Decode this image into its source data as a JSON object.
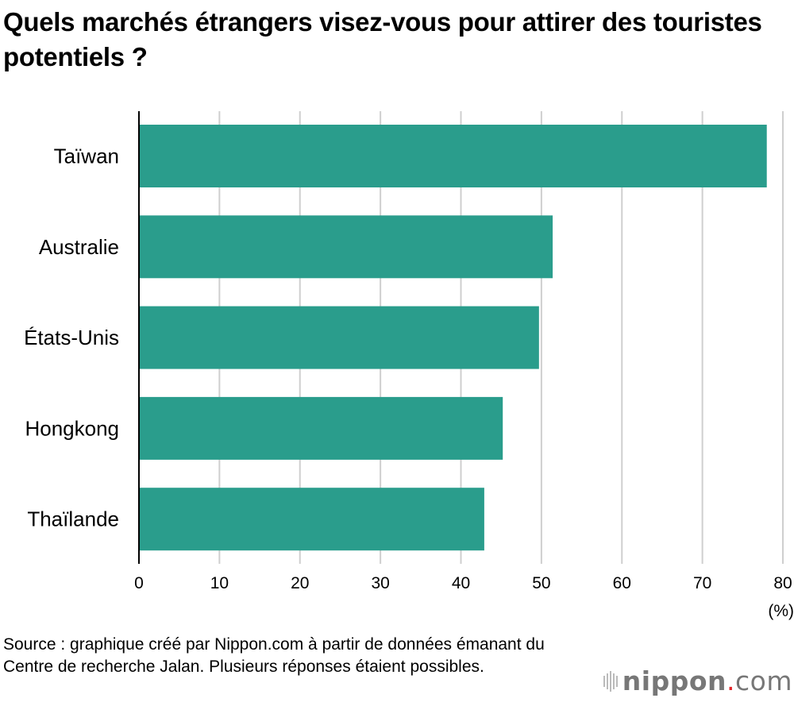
{
  "chart_data": {
    "type": "bar",
    "orientation": "horizontal",
    "title": "Quels marchés étrangers visez-vous pour attirer des touristes potentiels ?",
    "categories": [
      "Taïwan",
      "Australie",
      "États-Unis",
      "Hongkong",
      "Thaïlande"
    ],
    "values": [
      78.0,
      51.4,
      49.7,
      45.2,
      42.9
    ],
    "xlabel": "(%)",
    "ylabel": "",
    "xlim": [
      0,
      80
    ],
    "xticks": [
      "0",
      "10",
      "20",
      "30",
      "40",
      "50",
      "60",
      "70",
      "80"
    ],
    "grid": true,
    "bar_color": "#2a9d8c"
  },
  "source": "Source : graphique créé par Nippon.com à partir de données émanant du Centre de recherche Jalan. Plusieurs réponses étaient possibles.",
  "logo": {
    "name": "nippon",
    "dot": ".",
    "suffix": "com"
  }
}
